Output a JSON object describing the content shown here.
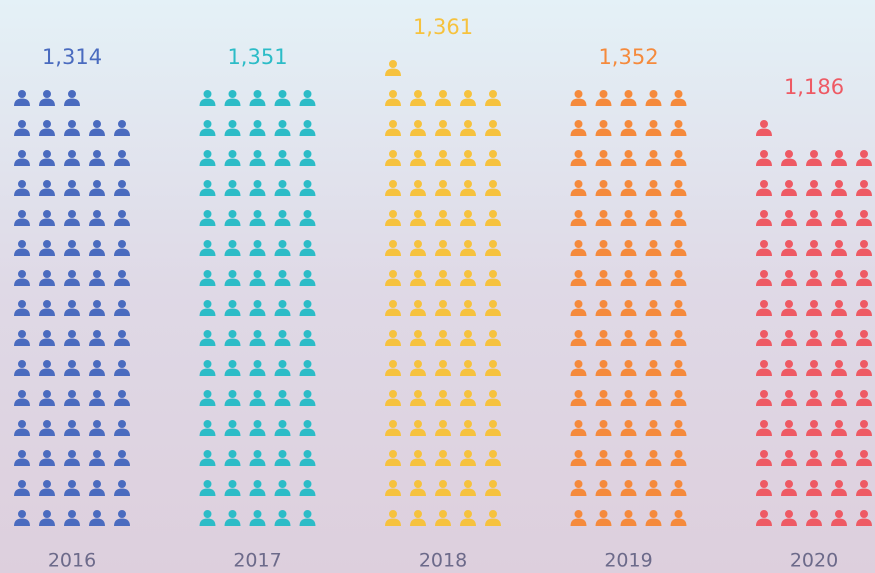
{
  "chart_data": {
    "type": "pictograph",
    "categories": [
      "2016",
      "2017",
      "2018",
      "2019",
      "2020"
    ],
    "values": [
      1314,
      1351,
      1361,
      1352,
      1186
    ],
    "value_labels": [
      "1,314",
      "1,351",
      "1,361",
      "1,352",
      "1,186"
    ],
    "colors": [
      "#4a6bbf",
      "#2cbcc7",
      "#f6c23e",
      "#f58a3c",
      "#ee5a64"
    ]
  }
}
